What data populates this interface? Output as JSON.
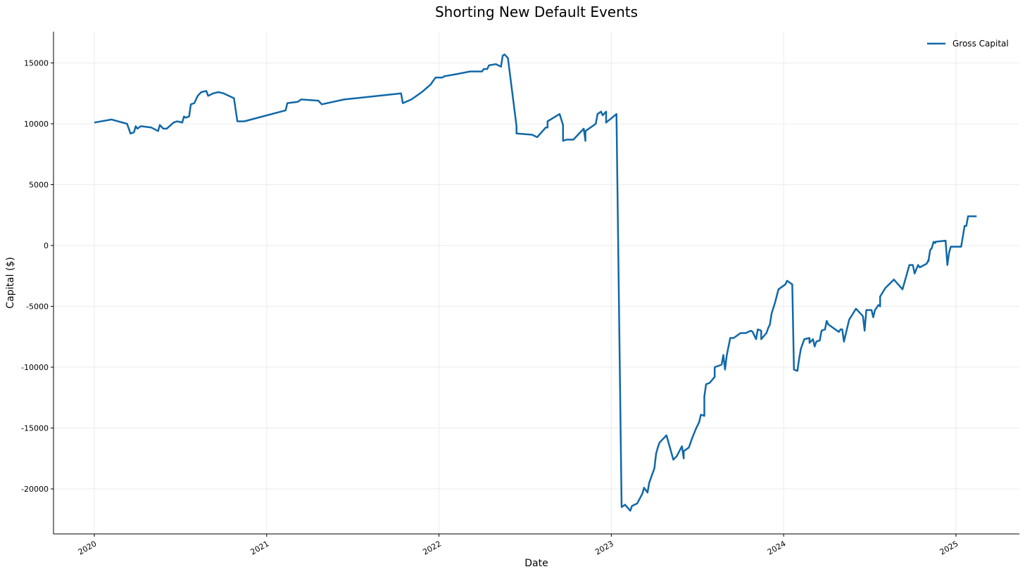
{
  "chart_data": {
    "type": "line",
    "title": "Shorting New Default Events",
    "xlabel": "Date",
    "ylabel": "Capital ($)",
    "x": [
      2020.0,
      2020.1,
      2020.19,
      2020.21,
      2020.23,
      2020.24,
      2020.25,
      2020.27,
      2020.33,
      2020.37,
      2020.38,
      2020.4,
      2020.42,
      2020.46,
      2020.48,
      2020.51,
      2020.52,
      2020.53,
      2020.55,
      2020.56,
      2020.58,
      2020.6,
      2020.62,
      2020.65,
      2020.66,
      2020.69,
      2020.72,
      2020.75,
      2020.81,
      2020.83,
      2020.87,
      2021.11,
      2021.12,
      2021.18,
      2021.2,
      2021.3,
      2021.32,
      2021.45,
      2021.78,
      2021.79,
      2021.84,
      2021.9,
      2021.95,
      2021.98,
      2022.02,
      2022.03,
      2022.11,
      2022.18,
      2022.25,
      2022.26,
      2022.28,
      2022.29,
      2022.33,
      2022.36,
      2022.37,
      2022.38,
      2022.4,
      2022.45,
      2022.45,
      2022.54,
      2022.57,
      2022.62,
      2022.63,
      2022.63,
      2022.7,
      2022.72,
      2022.72,
      2022.74,
      2022.78,
      2022.84,
      2022.85,
      2022.85,
      2022.91,
      2022.92,
      2022.94,
      2022.95,
      2022.97,
      2022.97,
      2023.03,
      2023.06,
      2023.08,
      2023.11,
      2023.12,
      2023.15,
      2023.18,
      2023.19,
      2023.21,
      2023.22,
      2023.25,
      2023.26,
      2023.27,
      2023.28,
      2023.32,
      2023.36,
      2023.38,
      2023.41,
      2023.42,
      2023.42,
      2023.45,
      2023.47,
      2023.49,
      2023.51,
      2023.52,
      2023.54,
      2023.54,
      2023.55,
      2023.57,
      2023.6,
      2023.6,
      2023.64,
      2023.65,
      2023.66,
      2023.67,
      2023.69,
      2023.71,
      2023.75,
      2023.78,
      2023.81,
      2023.82,
      2023.84,
      2023.85,
      2023.87,
      2023.87,
      2023.9,
      2023.9,
      2023.91,
      2023.92,
      2023.93,
      2023.95,
      2023.97,
      2024.01,
      2024.02,
      2024.05,
      2024.06,
      2024.08,
      2024.09,
      2024.1,
      2024.12,
      2024.15,
      2024.15,
      2024.17,
      2024.18,
      2024.19,
      2024.21,
      2024.22,
      2024.24,
      2024.25,
      2024.26,
      2024.32,
      2024.33,
      2024.34,
      2024.35,
      2024.36,
      2024.38,
      2024.42,
      2024.46,
      2024.47,
      2024.48,
      2024.51,
      2024.52,
      2024.53,
      2024.55,
      2024.56,
      2024.56,
      2024.59,
      2024.64,
      2024.69,
      2024.73,
      2024.75,
      2024.76,
      2024.78,
      2024.79,
      2024.83,
      2024.84,
      2024.84,
      2024.85,
      2024.86,
      2024.87,
      2024.88,
      2024.88,
      2024.94,
      2024.95,
      2024.96,
      2024.97,
      2025.03,
      2025.05,
      2025.06,
      2025.07,
      2025.12
    ],
    "series": [
      {
        "name": "Gross Capital",
        "color": "#1068a8",
        "values": [
          10100,
          10350,
          10000,
          9200,
          9300,
          9800,
          9600,
          9800,
          9700,
          9400,
          9900,
          9600,
          9600,
          10100,
          10200,
          10100,
          10600,
          10500,
          10600,
          11600,
          11700,
          12300,
          12600,
          12700,
          12300,
          12500,
          12600,
          12500,
          12100,
          10200,
          10200,
          11100,
          11700,
          11800,
          12000,
          11900,
          11600,
          12000,
          12500,
          11700,
          12000,
          12600,
          13200,
          13800,
          13800,
          13900,
          14100,
          14300,
          14300,
          14500,
          14500,
          14800,
          14900,
          14700,
          15600,
          15700,
          15400,
          9800,
          9200,
          9100,
          8900,
          9700,
          9700,
          10200,
          10800,
          9900,
          8600,
          8700,
          8700,
          9600,
          8600,
          9400,
          10000,
          10800,
          11000,
          10700,
          11000,
          10100,
          10800,
          -21500,
          -21300,
          -21800,
          -21400,
          -21200,
          -20400,
          -19900,
          -20300,
          -19500,
          -18300,
          -17100,
          -16600,
          -16200,
          -15600,
          -17600,
          -17300,
          -16500,
          -17500,
          -16900,
          -16600,
          -15800,
          -15100,
          -14500,
          -13900,
          -14000,
          -12400,
          -11400,
          -11300,
          -10800,
          -10000,
          -9800,
          -9000,
          -10200,
          -9000,
          -7600,
          -7600,
          -7200,
          -7200,
          -7000,
          -7100,
          -7700,
          -6900,
          -7000,
          -7700,
          -7200,
          -7200,
          -6800,
          -6500,
          -5600,
          -4700,
          -3600,
          -3200,
          -2900,
          -3200,
          -10200,
          -10300,
          -9300,
          -8500,
          -7700,
          -7600,
          -8000,
          -7700,
          -8300,
          -7900,
          -7800,
          -7000,
          -6900,
          -6200,
          -6500,
          -7100,
          -6900,
          -6900,
          -7900,
          -7300,
          -6100,
          -5200,
          -5800,
          -7000,
          -5300,
          -5300,
          -5900,
          -5300,
          -4900,
          -5000,
          -4200,
          -3500,
          -2800,
          -3600,
          -1600,
          -1600,
          -2300,
          -1600,
          -1800,
          -1500,
          -1200,
          -1300,
          -400,
          -200,
          300,
          200,
          300,
          400,
          -1600,
          -600,
          -100,
          -100,
          1600,
          1600,
          2400,
          2400
        ]
      }
    ],
    "xlim": [
      2019.763,
      2025.368
    ],
    "xticks": [
      2020,
      2021,
      2022,
      2023,
      2024,
      2025
    ],
    "ylim": [
      -23700,
      17570
    ],
    "yticks": [
      -20000,
      -15000,
      -10000,
      -5000,
      0,
      5000,
      10000,
      15000
    ],
    "grid": true,
    "legend": "upper right"
  }
}
